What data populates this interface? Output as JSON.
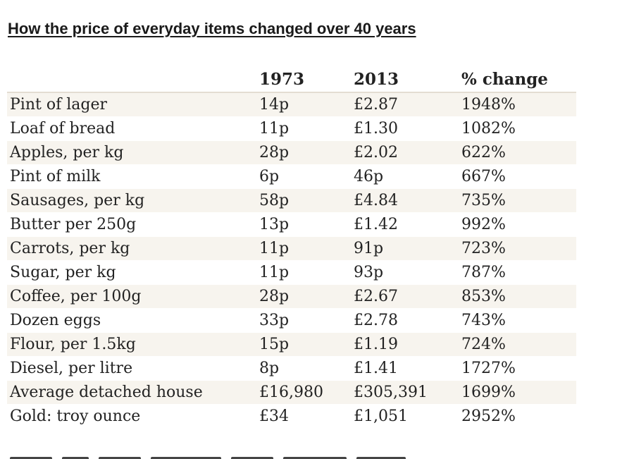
{
  "title": "How the price of everyday items changed over 40 years",
  "table": {
    "headers": {
      "item": "",
      "col1973": "1973",
      "col2013": "2013",
      "change": "% change"
    },
    "rows": [
      {
        "item": "Pint of lager",
        "p1973": "14p",
        "p2013": "£2.87",
        "change": "1948%"
      },
      {
        "item": "Loaf of bread",
        "p1973": "11p",
        "p2013": "£1.30",
        "change": "1082%"
      },
      {
        "item": "Apples, per kg",
        "p1973": "28p",
        "p2013": "£2.02",
        "change": "622%"
      },
      {
        "item": "Pint of milk",
        "p1973": "6p",
        "p2013": "46p",
        "change": "667%"
      },
      {
        "item": "Sausages, per kg",
        "p1973": "58p",
        "p2013": "£4.84",
        "change": "735%"
      },
      {
        "item": "Butter per 250g",
        "p1973": "13p",
        "p2013": "£1.42",
        "change": "992%"
      },
      {
        "item": "Carrots, per kg",
        "p1973": "11p",
        "p2013": "91p",
        "change": "723%"
      },
      {
        "item": "Sugar, per kg",
        "p1973": "11p",
        "p2013": "93p",
        "change": "787%"
      },
      {
        "item": "Coffee, per 100g",
        "p1973": "28p",
        "p2013": "£2.67",
        "change": "853%"
      },
      {
        "item": "Dozen eggs",
        "p1973": "33p",
        "p2013": "£2.78",
        "change": "743%"
      },
      {
        "item": "Flour, per 1.5kg",
        "p1973": "15p",
        "p2013": "£1.19",
        "change": "724%"
      },
      {
        "item": "Diesel, per litre",
        "p1973": "8p",
        "p2013": "£1.41",
        "change": "1727%"
      },
      {
        "item": "Average detached house",
        "p1973": "£16,980",
        "p2013": "£305,391",
        "change": "1699%"
      },
      {
        "item": "Gold: troy ounce",
        "p1973": "£34",
        "p2013": "£1,051",
        "change": "2952%"
      }
    ]
  },
  "colors": {
    "shaded_row": "#f7f4ee",
    "header_rule": "#e3ddd2",
    "text": "#222222"
  }
}
